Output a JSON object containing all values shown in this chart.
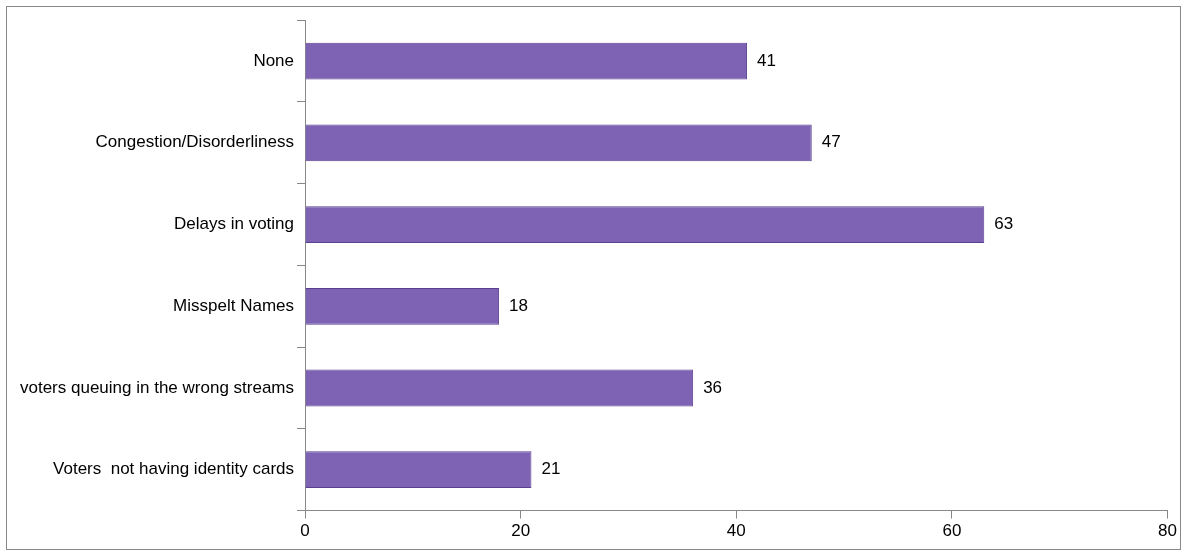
{
  "chart_data": {
    "type": "bar",
    "orientation": "horizontal",
    "categories": [
      "None",
      "Congestion/Disorderliness",
      "Delays in voting",
      "Misspelt Names",
      "voters queuing in the wrong streams",
      "Voters  not having identity cards"
    ],
    "values": [
      41,
      47,
      63,
      18,
      36,
      21
    ],
    "color": "#7e62b4",
    "xlim": [
      0,
      80
    ],
    "xticks": [
      0,
      20,
      40,
      60,
      80
    ],
    "grid": false,
    "legend": false,
    "data_labels": true
  }
}
